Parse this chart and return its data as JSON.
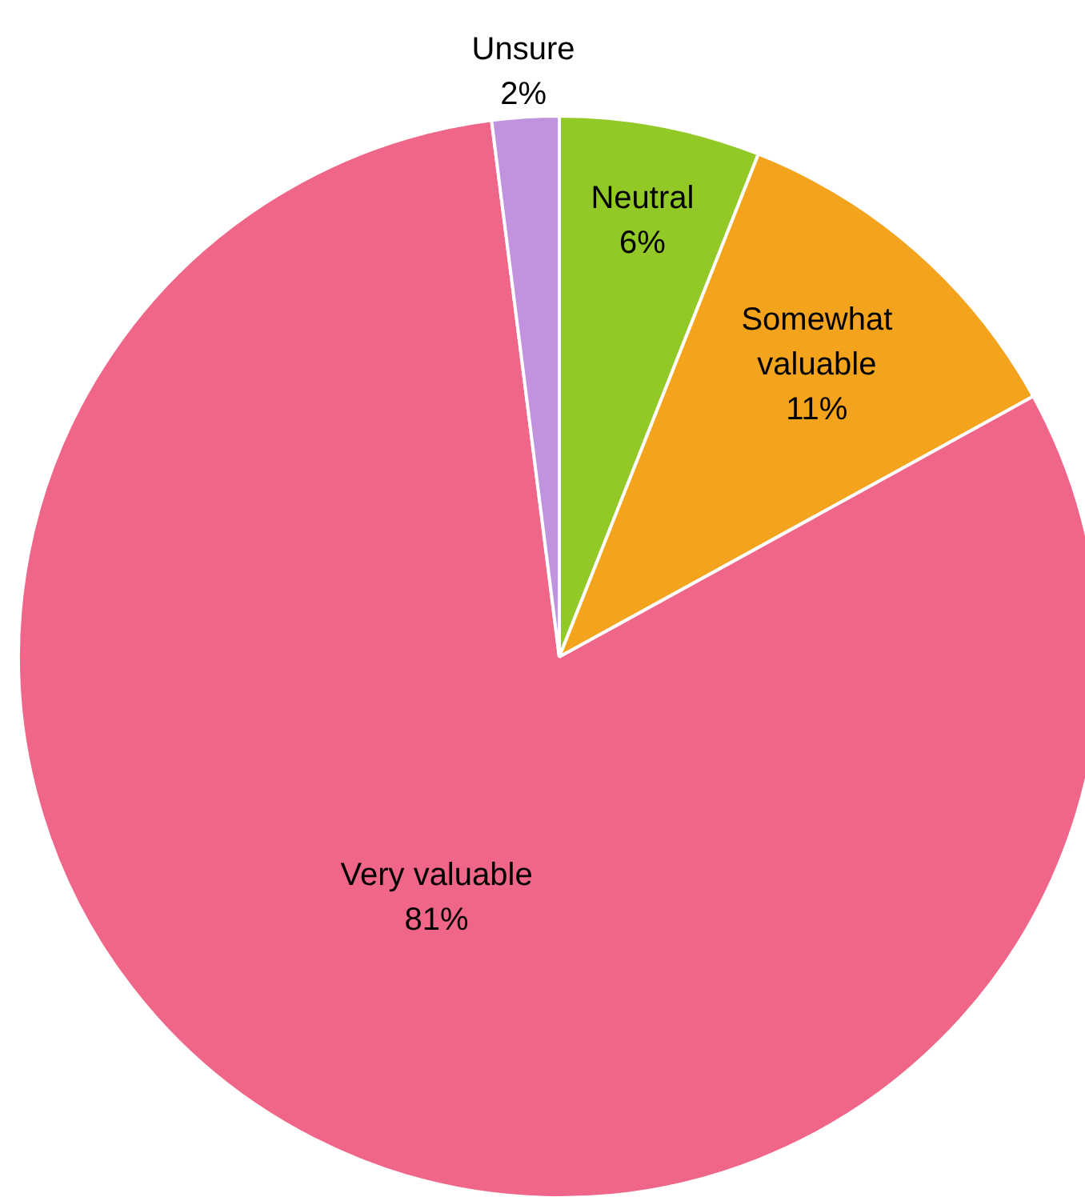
{
  "chart_data": {
    "type": "pie",
    "categories": [
      "Neutral",
      "Somewhat valuable",
      "Very valuable",
      "Unsure"
    ],
    "values": [
      6,
      11,
      81,
      2
    ],
    "colors": [
      "#92c927",
      "#f4a41c",
      "#f06688",
      "#c192de"
    ],
    "value_labels": [
      "6%",
      "11%",
      "81%",
      "2%"
    ],
    "legend": false
  }
}
